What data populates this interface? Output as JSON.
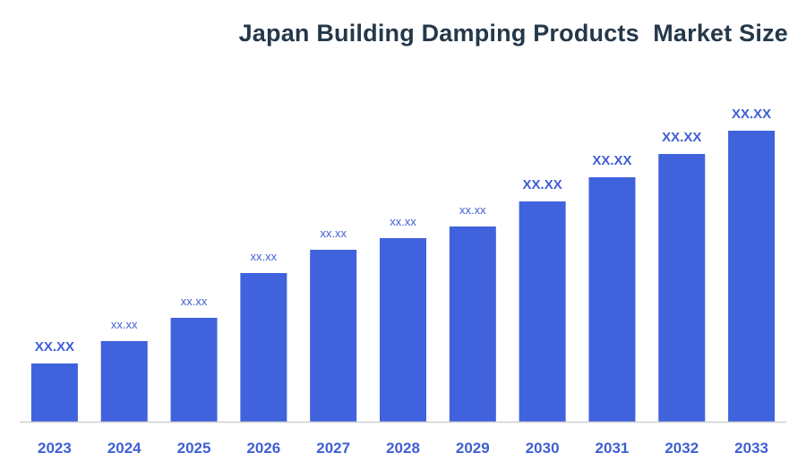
{
  "chart_data": {
    "type": "bar",
    "title": "Japan Building Damping Products  Market Size",
    "xlabel": "",
    "ylabel": "",
    "categories": [
      "2023",
      "2024",
      "2025",
      "2026",
      "2027",
      "2028",
      "2029",
      "2030",
      "2031",
      "2032",
      "2033"
    ],
    "values": [
      6.5,
      9.0,
      11.6,
      16.6,
      19.2,
      20.5,
      21.8,
      24.6,
      27.3,
      29.9,
      32.5
    ],
    "data_labels": [
      "XX.XX",
      "xx.xx",
      "xx.xx",
      "xx.xx",
      "xx.xx",
      "xx.xx",
      "xx.xx",
      "XX.XX",
      "XX.XX",
      "XX.XX",
      "XX.XX"
    ],
    "ylim": [
      0,
      40
    ],
    "grid": false,
    "legend": "none",
    "bar_color": "#4062dd",
    "label_color": "#3f5fd4",
    "title_color": "#24384a",
    "axis_color": "#d0d0d0"
  }
}
